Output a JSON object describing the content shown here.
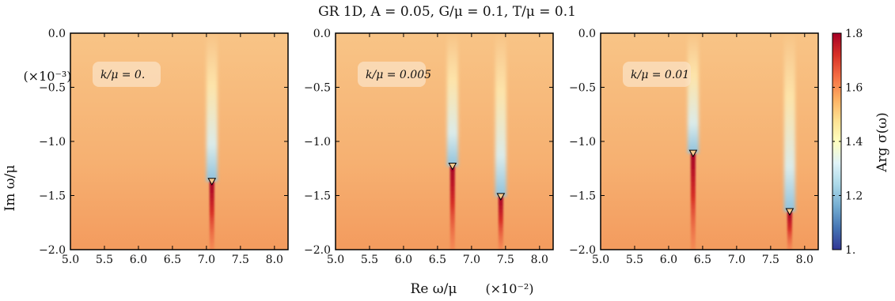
{
  "title": "GR 1D, A = 0.05, G/μ = 0.1, T/μ = 0.1",
  "xlabel": "Re ω/μ",
  "xscale_label": "(×10⁻²)",
  "ylabel": "Im ω/μ",
  "yscale_label": "(×10⁻³)",
  "colorbar": {
    "label": "Arg σ(ω)",
    "ticks": [
      1.0,
      1.2,
      1.4,
      1.6,
      1.8
    ],
    "tick_labels": [
      "1.",
      "1.2",
      "1.4",
      "1.6",
      "1.8"
    ],
    "range": [
      1.0,
      1.8
    ],
    "colormap": "RdYlBu_r"
  },
  "chart_data": [
    {
      "type": "heatmap",
      "panel_label": "k/μ = 0.",
      "x_ticks": [
        "5.0",
        "5.5",
        "6.0",
        "6.5",
        "7.0",
        "7.5",
        "8.0"
      ],
      "y_ticks": [
        "0.0",
        "−0.5",
        "−1.0",
        "−1.5",
        "−2.0"
      ],
      "xlim": [
        5.0,
        8.2
      ],
      "ylim": [
        -2.0,
        0.0
      ],
      "background_value": 1.58,
      "markers": [
        {
          "x": 7.08,
          "y": -1.37
        }
      ]
    },
    {
      "type": "heatmap",
      "panel_label": "k/μ = 0.005",
      "x_ticks": [
        "5.0",
        "5.5",
        "6.0",
        "6.5",
        "7.0",
        "7.5",
        "8.0"
      ],
      "y_ticks": [
        "0.0",
        "−0.5",
        "−1.0",
        "−1.5",
        "−2.0"
      ],
      "xlim": [
        5.0,
        8.2
      ],
      "ylim": [
        -2.0,
        0.0
      ],
      "background_value": 1.58,
      "markers": [
        {
          "x": 6.72,
          "y": -1.23
        },
        {
          "x": 7.43,
          "y": -1.51
        }
      ]
    },
    {
      "type": "heatmap",
      "panel_label": "k/μ = 0.01",
      "x_ticks": [
        "5.0",
        "5.5",
        "6.0",
        "6.5",
        "7.0",
        "7.5",
        "8.0"
      ],
      "y_ticks": [
        "0.0",
        "−0.5",
        "−1.0",
        "−1.5",
        "−2.0"
      ],
      "xlim": [
        5.0,
        8.2
      ],
      "ylim": [
        -2.0,
        0.0
      ],
      "background_value": 1.58,
      "markers": [
        {
          "x": 6.36,
          "y": -1.11
        },
        {
          "x": 7.78,
          "y": -1.65
        }
      ]
    }
  ]
}
